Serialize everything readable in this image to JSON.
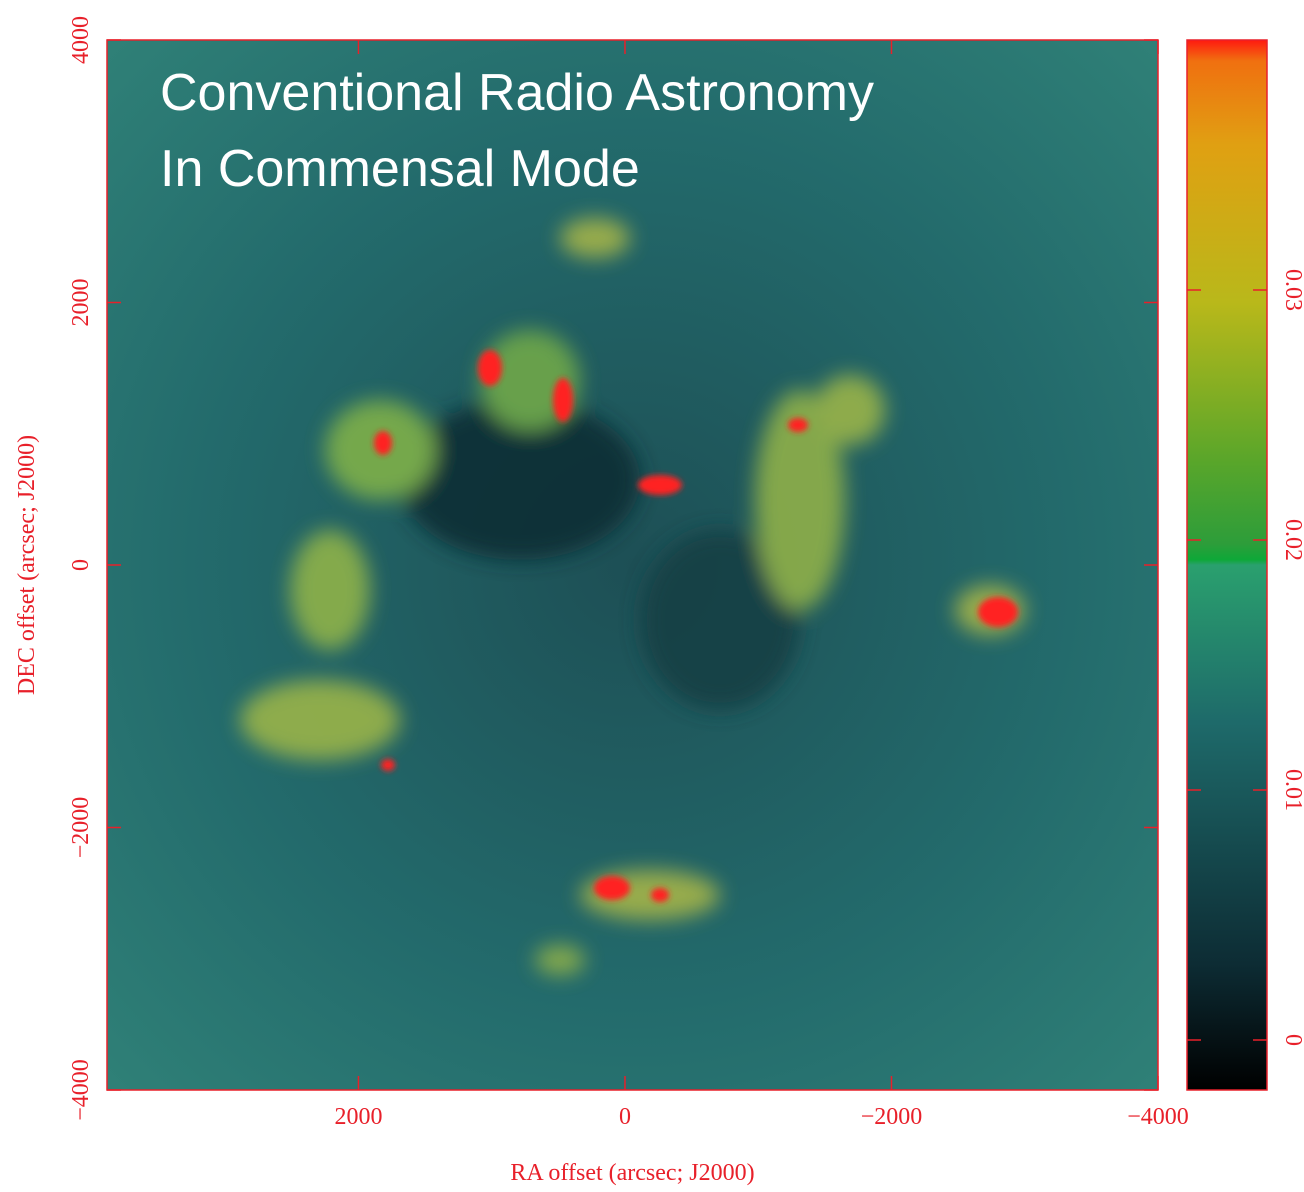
{
  "chart_data": {
    "type": "image",
    "annotations": [
      "Conventional Radio Astronomy",
      "In Commensal Mode"
    ],
    "xlabel": "RA offset (arcsec; J2000)",
    "ylabel": "DEC offset (arcsec; J2000)",
    "xlim": [
      3887,
      -4000
    ],
    "ylim": [
      -4000,
      4000
    ],
    "xticks": [
      2000,
      0,
      {
        "value": -2000,
        "label": "−2000"
      },
      {
        "value": -4000,
        "label": "−4000"
      }
    ],
    "yticks": [
      {
        "value": -4000,
        "label": "−4000"
      },
      {
        "value": -2000,
        "label": "−2000"
      },
      0,
      2000,
      4000
    ],
    "clim": [
      -0.002,
      0.04
    ],
    "cticks": [
      0,
      0.01,
      0.02,
      0.03
    ],
    "axis_color": "#e8202a"
  }
}
